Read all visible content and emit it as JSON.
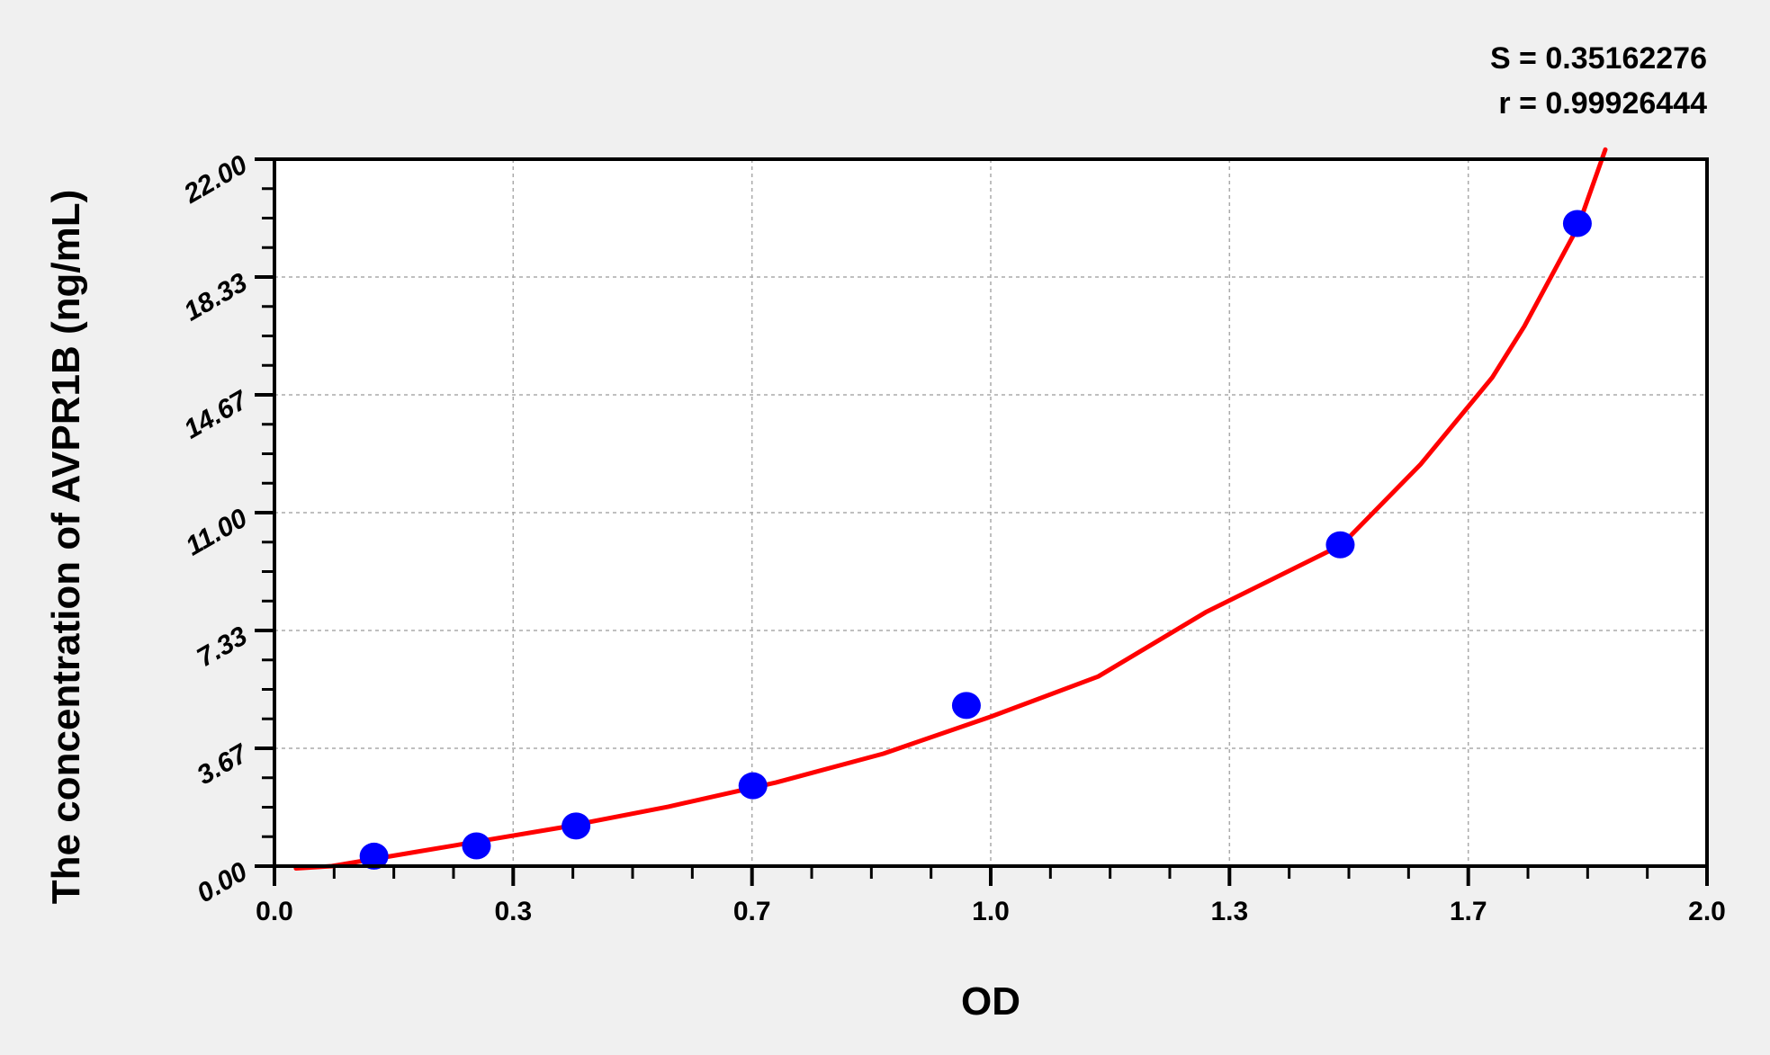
{
  "chart_data": {
    "type": "scatter",
    "title": "",
    "xlabel": "OD",
    "ylabel": "The concentration of AVPR1B (ng/mL)",
    "xlim": [
      0,
      2.0
    ],
    "ylim": [
      0,
      22.0
    ],
    "x_ticks": [
      0,
      0.3333,
      0.6667,
      1.0,
      1.3333,
      1.6667,
      2.0
    ],
    "x_tick_labels": [
      "0.0",
      "0.3",
      "0.7",
      "1.0",
      "1.3",
      "1.7",
      "2.0"
    ],
    "y_ticks": [
      0,
      3.667,
      7.333,
      11.0,
      14.667,
      18.333,
      22.0
    ],
    "y_tick_labels": [
      "0.00",
      "3.67",
      "7.33",
      "11.00",
      "14.67",
      "18.33",
      "22.00"
    ],
    "grid": true,
    "annotations": [
      "S = 0.35162276",
      "r = 0.99926444"
    ],
    "points": {
      "x": [
        0.139,
        0.282,
        0.421,
        0.668,
        0.966,
        1.488,
        1.819
      ],
      "y": [
        0.31,
        0.63,
        1.25,
        2.5,
        5.0,
        10.0,
        20.0
      ],
      "color": "#0000ff"
    },
    "fit_curve": {
      "color": "#ff0000",
      "x": [
        0.03,
        0.08,
        0.2,
        0.4,
        0.55,
        0.7,
        0.85,
        1.0,
        1.15,
        1.3,
        1.49,
        1.6,
        1.7,
        1.745,
        1.82,
        1.858
      ],
      "y": [
        -0.07,
        0.0,
        0.45,
        1.2,
        1.85,
        2.6,
        3.5,
        4.65,
        5.9,
        7.9,
        10.0,
        12.5,
        15.2,
        16.8,
        19.9,
        22.3
      ]
    }
  }
}
